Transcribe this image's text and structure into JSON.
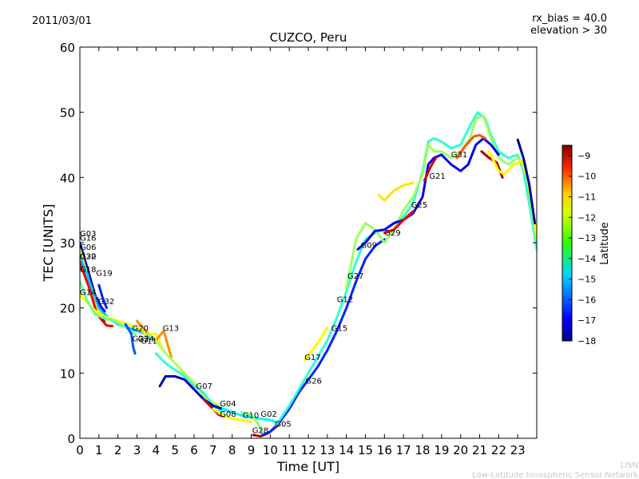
{
  "chart_data": {
    "type": "line",
    "date": "2011/03/01",
    "title": "CUZCO, Peru",
    "annotations": [
      "rx_bias = 40.0",
      "elevation > 30"
    ],
    "xlabel": "Time [UT]",
    "ylabel": "TEC [UNITS]",
    "xlim": [
      0,
      24
    ],
    "ylim": [
      0,
      60
    ],
    "xticks": [
      "0",
      "1",
      "2",
      "3",
      "4",
      "5",
      "6",
      "7",
      "8",
      "9",
      "10",
      "11",
      "12",
      "13",
      "14",
      "15",
      "16",
      "17",
      "18",
      "19",
      "20",
      "21",
      "22",
      "23"
    ],
    "yticks": [
      "0",
      "10",
      "20",
      "30",
      "40",
      "50",
      "60"
    ],
    "colorbar": {
      "label": "Latitude",
      "range": [
        -18,
        -8.5
      ],
      "ticks": [
        "−9",
        "−10",
        "−11",
        "−12",
        "−13",
        "−14",
        "−15",
        "−16",
        "−17",
        "−18"
      ]
    },
    "satellite_labels": [
      {
        "name": "G03",
        "t": 0.0,
        "tec": 31.0
      },
      {
        "name": "G16",
        "t": 0.0,
        "tec": 30.3
      },
      {
        "name": "G06",
        "t": 0.0,
        "tec": 28.9
      },
      {
        "name": "G30",
        "t": 0.0,
        "tec": 27.5
      },
      {
        "name": "G22",
        "t": 0.0,
        "tec": 27.5
      },
      {
        "name": "G18",
        "t": 0.0,
        "tec": 25.5
      },
      {
        "name": "G19",
        "t": 0.85,
        "tec": 24.9
      },
      {
        "name": "G14",
        "t": 0.0,
        "tec": 22.0
      },
      {
        "name": "G32",
        "t": 0.95,
        "tec": 20.6
      },
      {
        "name": "G20",
        "t": 2.75,
        "tec": 16.5
      },
      {
        "name": "G13",
        "t": 4.35,
        "tec": 16.5
      },
      {
        "name": "G23",
        "t": 2.75,
        "tec": 14.9
      },
      {
        "name": "G24",
        "t": 3.05,
        "tec": 14.8
      },
      {
        "name": "G11",
        "t": 3.2,
        "tec": 14.5
      },
      {
        "name": "G07",
        "t": 6.1,
        "tec": 7.6
      },
      {
        "name": "G04",
        "t": 7.35,
        "tec": 4.9
      },
      {
        "name": "G08",
        "t": 7.35,
        "tec": 3.3
      },
      {
        "name": "G10",
        "t": 8.55,
        "tec": 3.1
      },
      {
        "name": "G02",
        "t": 9.5,
        "tec": 3.3
      },
      {
        "name": "G05",
        "t": 10.25,
        "tec": 1.8
      },
      {
        "name": "G28",
        "t": 9.05,
        "tec": 0.8
      },
      {
        "name": "G17",
        "t": 11.8,
        "tec": 12.0
      },
      {
        "name": "G26",
        "t": 11.85,
        "tec": 8.4
      },
      {
        "name": "G15",
        "t": 13.2,
        "tec": 16.5
      },
      {
        "name": "G12",
        "t": 13.5,
        "tec": 20.9
      },
      {
        "name": "G27",
        "t": 14.05,
        "tec": 24.5
      },
      {
        "name": "G09",
        "t": 14.75,
        "tec": 29.2
      },
      {
        "name": "G29",
        "t": 16.0,
        "tec": 31.1
      },
      {
        "name": "G25",
        "t": 17.4,
        "tec": 35.4
      },
      {
        "name": "G21",
        "t": 18.35,
        "tec": 39.8
      },
      {
        "name": "G31",
        "t": 19.5,
        "tec": 43.1
      }
    ],
    "series": [
      {
        "lat": -17.5,
        "points": [
          [
            0,
            30
          ],
          [
            0.3,
            27
          ],
          [
            0.6,
            24
          ],
          [
            1,
            20
          ],
          [
            1.3,
            18
          ]
        ]
      },
      {
        "lat": -12.5,
        "points": [
          [
            0,
            29
          ],
          [
            0.4,
            25
          ],
          [
            0.9,
            20
          ],
          [
            1.4,
            18
          ]
        ]
      },
      {
        "lat": -9.5,
        "points": [
          [
            0,
            27
          ],
          [
            0.5,
            23
          ],
          [
            0.9,
            19
          ],
          [
            1.4,
            17.3
          ],
          [
            1.7,
            17.2
          ]
        ]
      },
      {
        "lat": -15.0,
        "points": [
          [
            0,
            28
          ],
          [
            0.5,
            24
          ],
          [
            1,
            20
          ],
          [
            1.5,
            18.5
          ],
          [
            2,
            17.5
          ],
          [
            2.5,
            17
          ],
          [
            3,
            16.5
          ],
          [
            3.5,
            16
          ],
          [
            4,
            15
          ],
          [
            4.2,
            14.5
          ]
        ]
      },
      {
        "lat": -12.0,
        "points": [
          [
            0,
            22
          ],
          [
            0.5,
            20.5
          ],
          [
            1,
            19
          ],
          [
            1.5,
            18.5
          ],
          [
            2,
            18
          ],
          [
            2.5,
            17.5
          ],
          [
            3,
            17
          ],
          [
            3.5,
            16
          ],
          [
            4,
            16
          ],
          [
            4.3,
            14
          ]
        ]
      },
      {
        "lat": -13.5,
        "points": [
          [
            0,
            24
          ],
          [
            0.4,
            21
          ],
          [
            0.8,
            19
          ],
          [
            1.2,
            18.5
          ],
          [
            1.8,
            18
          ],
          [
            2.4,
            17
          ],
          [
            2.9,
            16
          ]
        ]
      },
      {
        "lat": -16.5,
        "points": [
          [
            1,
            23.5
          ],
          [
            1.2,
            21.5
          ],
          [
            1.4,
            20
          ]
        ]
      },
      {
        "lat": -17.0,
        "points": [
          [
            0.9,
            21.5
          ],
          [
            1.1,
            20.2
          ],
          [
            1.3,
            19.5
          ]
        ]
      },
      {
        "lat": -16.0,
        "points": [
          [
            2.4,
            17.5
          ],
          [
            2.7,
            16
          ],
          [
            2.8,
            14
          ],
          [
            2.9,
            13
          ]
        ]
      },
      {
        "lat": -11.0,
        "points": [
          [
            3,
            18
          ],
          [
            3.3,
            17
          ],
          [
            3.6,
            16
          ],
          [
            4,
            15
          ],
          [
            4.4,
            16.5
          ],
          [
            4.6,
            14.5
          ],
          [
            4.8,
            12.5
          ]
        ]
      },
      {
        "lat": -12.8,
        "points": [
          [
            3.6,
            16
          ],
          [
            4,
            15
          ],
          [
            4.5,
            13
          ],
          [
            5,
            11.5
          ],
          [
            5.5,
            10
          ],
          [
            6,
            8.5
          ],
          [
            6.5,
            6.5
          ],
          [
            7,
            5.5
          ],
          [
            7.5,
            4.5
          ]
        ]
      },
      {
        "lat": -14.0,
        "points": [
          [
            4,
            13
          ],
          [
            4.5,
            11.5
          ],
          [
            5,
            10.5
          ],
          [
            5.5,
            9.5
          ],
          [
            6,
            8
          ],
          [
            6.5,
            7
          ],
          [
            7,
            5
          ],
          [
            7.5,
            4
          ]
        ]
      },
      {
        "lat": -17.5,
        "points": [
          [
            4.2,
            8
          ],
          [
            4.5,
            9.5
          ],
          [
            5,
            9.5
          ],
          [
            5.5,
            9
          ],
          [
            6,
            7.5
          ],
          [
            6.5,
            6
          ],
          [
            7,
            5
          ],
          [
            7.5,
            4.5
          ],
          [
            8,
            4
          ]
        ]
      },
      {
        "lat": -9.2,
        "points": [
          [
            6.5,
            6
          ],
          [
            7,
            4.5
          ],
          [
            7.3,
            3.6
          ],
          [
            7.6,
            3.3
          ]
        ]
      },
      {
        "lat": -12.0,
        "points": [
          [
            7,
            4.5
          ],
          [
            7.5,
            3.5
          ],
          [
            8,
            3
          ],
          [
            8.5,
            2.8
          ],
          [
            9,
            2.5
          ]
        ]
      },
      {
        "lat": -14.5,
        "points": [
          [
            7.5,
            4.5
          ],
          [
            8,
            4
          ],
          [
            8.5,
            3.5
          ],
          [
            9,
            3.2
          ],
          [
            9.5,
            3
          ],
          [
            10,
            2.8
          ],
          [
            10.3,
            2.5
          ]
        ]
      },
      {
        "lat": -13.2,
        "points": [
          [
            8.5,
            4
          ],
          [
            9,
            3.5
          ],
          [
            9.3,
            2.5
          ],
          [
            9.5,
            1.5
          ],
          [
            9.6,
            0.5
          ]
        ]
      },
      {
        "lat": -9.0,
        "points": [
          [
            9.1,
            0.5
          ],
          [
            9.5,
            0.3
          ],
          [
            9.9,
            0.8
          ],
          [
            10.2,
            1.5
          ],
          [
            10.4,
            2
          ]
        ]
      },
      {
        "lat": -16.5,
        "points": [
          [
            9.6,
            0.5
          ],
          [
            10,
            1
          ],
          [
            10.5,
            2.5
          ],
          [
            11,
            4.5
          ],
          [
            11.5,
            7
          ],
          [
            12,
            9
          ],
          [
            12.5,
            11
          ],
          [
            13,
            13.5
          ],
          [
            13.5,
            16.5
          ],
          [
            14,
            20
          ],
          [
            14.5,
            24
          ],
          [
            15,
            27.5
          ],
          [
            15.5,
            29.5
          ],
          [
            16,
            30.5
          ]
        ]
      },
      {
        "lat": -12.0,
        "points": [
          [
            11.8,
            12
          ],
          [
            12.2,
            13.5
          ],
          [
            12.6,
            15
          ],
          [
            13,
            17
          ]
        ]
      },
      {
        "lat": -14.0,
        "points": [
          [
            10.3,
            2
          ],
          [
            11,
            5
          ],
          [
            11.5,
            7.5
          ],
          [
            12,
            10
          ],
          [
            12.5,
            12.5
          ],
          [
            13,
            15
          ],
          [
            13.5,
            18.5
          ],
          [
            14,
            22.5
          ],
          [
            14.5,
            27
          ],
          [
            15,
            30.5
          ],
          [
            15.5,
            31.5
          ],
          [
            16,
            32
          ],
          [
            16.5,
            33
          ],
          [
            17,
            34
          ],
          [
            17.5,
            36
          ],
          [
            18,
            41
          ],
          [
            18.3,
            45.5
          ],
          [
            18.6,
            46
          ],
          [
            19,
            45.5
          ],
          [
            19.5,
            44.5
          ],
          [
            20,
            45
          ],
          [
            20.5,
            48
          ],
          [
            20.9,
            50
          ],
          [
            21.3,
            49
          ],
          [
            21.6,
            46.5
          ],
          [
            22,
            44
          ],
          [
            22.5,
            43
          ],
          [
            23,
            43.5
          ],
          [
            23.3,
            41
          ],
          [
            23.6,
            36
          ],
          [
            24,
            29
          ]
        ]
      },
      {
        "lat": -13.0,
        "points": [
          [
            14,
            23
          ],
          [
            14.5,
            30.5
          ],
          [
            15,
            33
          ],
          [
            15.5,
            32
          ],
          [
            16,
            30
          ],
          [
            16.5,
            32
          ],
          [
            17,
            35
          ],
          [
            17.5,
            37
          ],
          [
            18,
            40.5
          ],
          [
            18.3,
            45
          ],
          [
            18.6,
            44
          ],
          [
            19,
            44
          ],
          [
            19.5,
            43
          ],
          [
            20,
            44
          ],
          [
            20.5,
            46
          ],
          [
            20.8,
            49
          ],
          [
            21.2,
            49.5
          ],
          [
            21.6,
            46
          ],
          [
            22,
            43
          ],
          [
            22.5,
            42
          ],
          [
            23,
            43
          ],
          [
            23.4,
            42
          ],
          [
            23.8,
            34
          ],
          [
            24,
            30
          ]
        ]
      },
      {
        "lat": -17.0,
        "points": [
          [
            14.6,
            29
          ],
          [
            15,
            30
          ],
          [
            15.5,
            31.8
          ],
          [
            16,
            32
          ],
          [
            16.5,
            33
          ],
          [
            17,
            33.5
          ],
          [
            17.5,
            34.5
          ],
          [
            18,
            37
          ],
          [
            18.3,
            42
          ],
          [
            18.6,
            43
          ],
          [
            19,
            43.5
          ],
          [
            19.5,
            42
          ],
          [
            20,
            41
          ],
          [
            20.4,
            42
          ],
          [
            20.8,
            45
          ],
          [
            21.2,
            46
          ],
          [
            21.6,
            45
          ],
          [
            22,
            43.5
          ]
        ]
      },
      {
        "lat": -11.8,
        "points": [
          [
            15.7,
            37.3
          ],
          [
            16,
            36.5
          ],
          [
            16.5,
            38
          ],
          [
            17,
            38.8
          ],
          [
            17.5,
            39.2
          ]
        ]
      },
      {
        "lat": -9.5,
        "points": [
          [
            16,
            31.5
          ],
          [
            16.5,
            32
          ],
          [
            17,
            33.5
          ],
          [
            17.5,
            34.8
          ]
        ]
      },
      {
        "lat": -9.3,
        "points": [
          [
            18.1,
            39.5
          ],
          [
            18.4,
            41.5
          ],
          [
            18.7,
            43
          ]
        ]
      },
      {
        "lat": -10.5,
        "points": [
          [
            19.8,
            43
          ],
          [
            20.3,
            45
          ],
          [
            20.7,
            46.3
          ],
          [
            21,
            46.5
          ],
          [
            21.3,
            46
          ]
        ]
      },
      {
        "lat": -9.0,
        "points": [
          [
            21.1,
            44
          ],
          [
            21.5,
            43
          ],
          [
            21.9,
            42.3
          ],
          [
            22.2,
            40
          ]
        ]
      },
      {
        "lat": -12.0,
        "points": [
          [
            21.5,
            44
          ],
          [
            22,
            41
          ],
          [
            22.3,
            40.5
          ],
          [
            22.8,
            42
          ],
          [
            23.2,
            42.5
          ],
          [
            23.5,
            40
          ],
          [
            23.8,
            35
          ],
          [
            24,
            31
          ]
        ]
      },
      {
        "lat": -17.8,
        "points": [
          [
            23,
            45.8
          ],
          [
            23.3,
            43
          ],
          [
            23.6,
            39
          ],
          [
            23.9,
            33
          ]
        ]
      }
    ]
  },
  "footer": {
    "line1": "LISN",
    "line2": "Low-Latitude Ionospheric Sensor Network"
  },
  "colors": {
    "axis": "#000000",
    "footer": "#c8c8c8"
  }
}
